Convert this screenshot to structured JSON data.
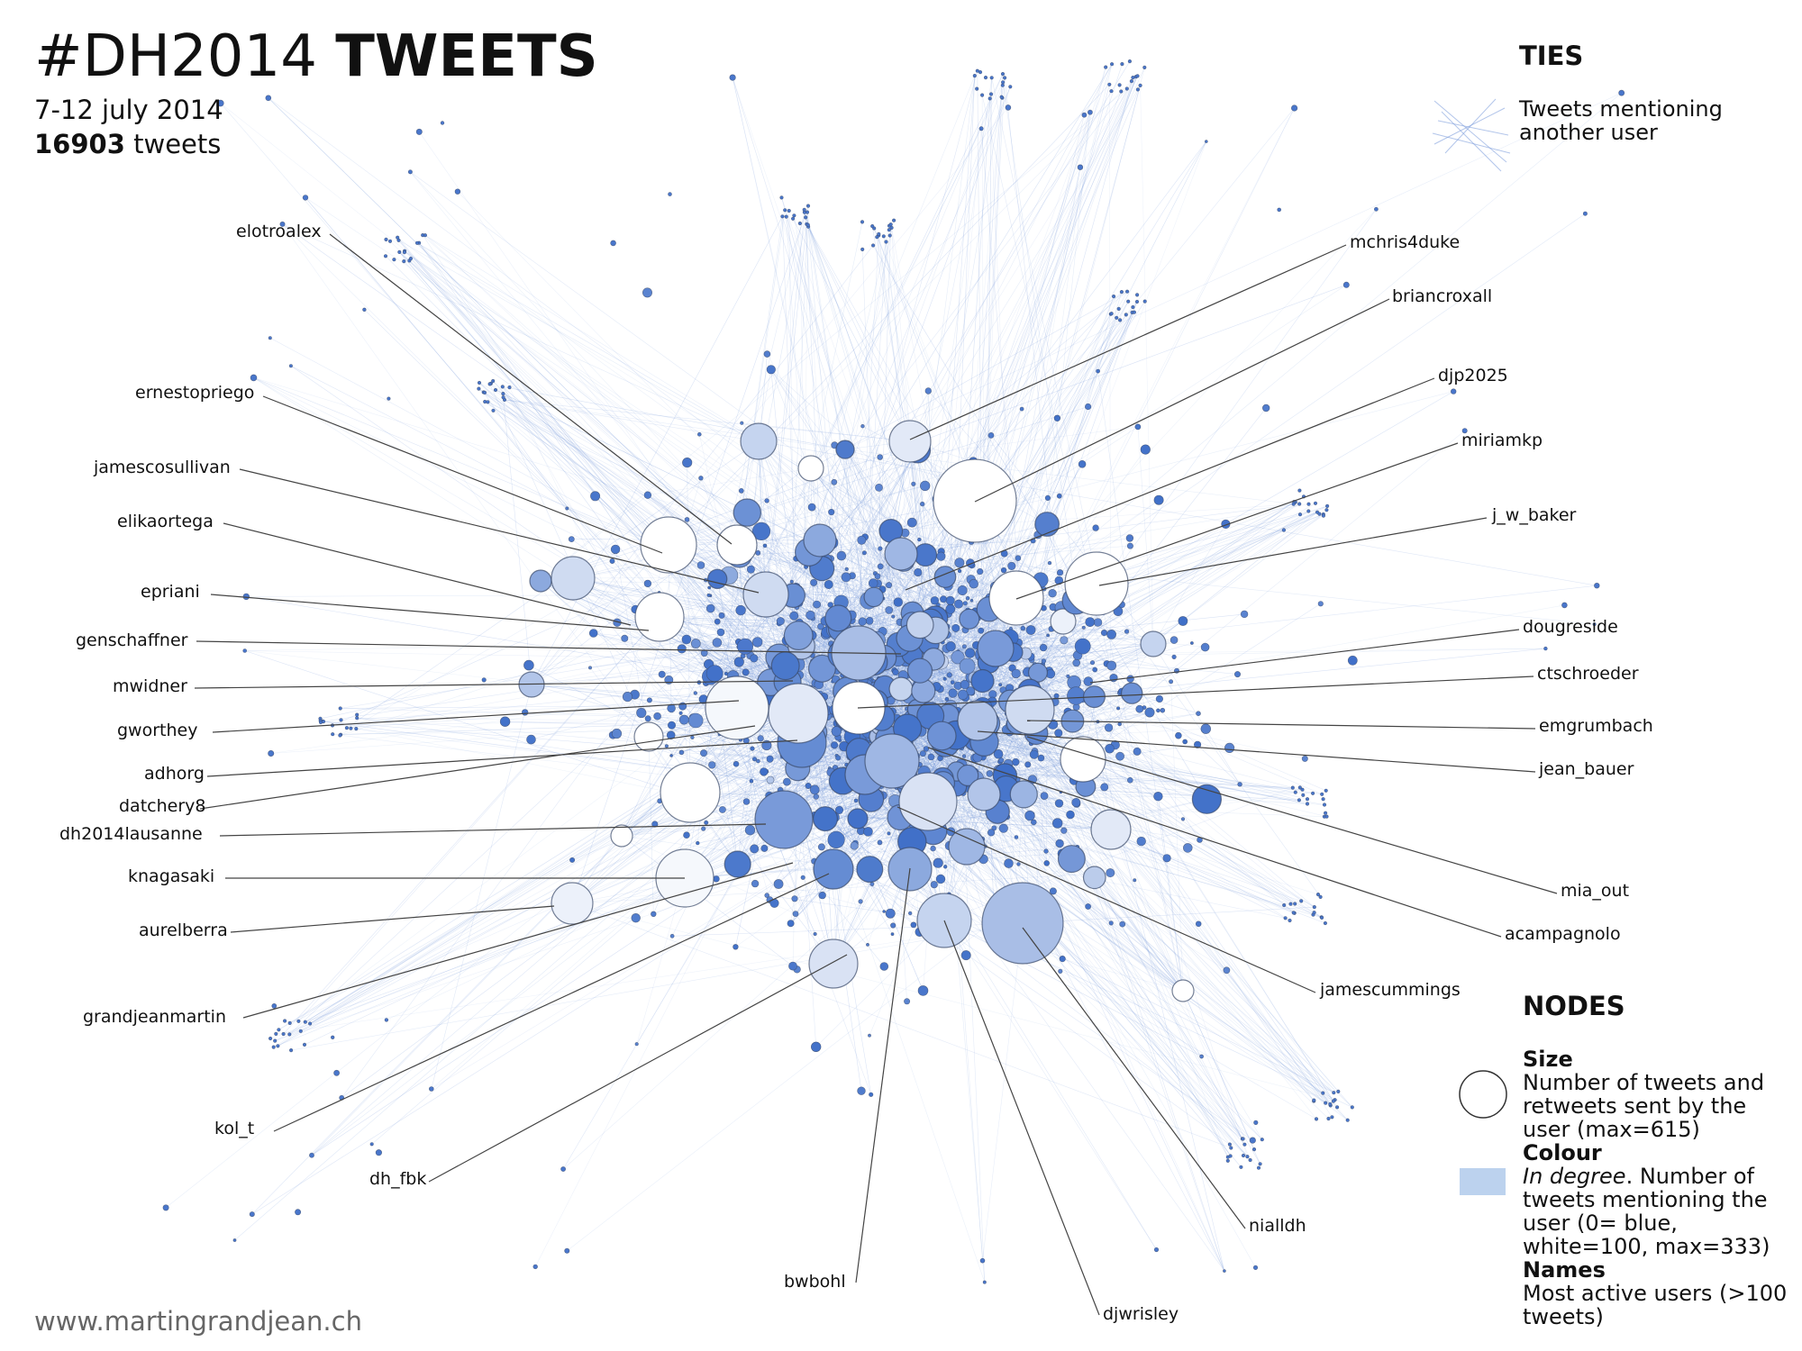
{
  "header": {
    "title_hashtag": "#DH2014",
    "title_word": "TWEETS",
    "dates": "7-12 july 2014",
    "tweet_count": "16903",
    "tweet_word": "tweets"
  },
  "footer": {
    "url": "www.martingrandjean.ch"
  },
  "legend": {
    "ties_heading": "TIES",
    "ties_text": "Tweets mentioning another user",
    "nodes_heading": "NODES",
    "size_heading": "Size",
    "size_text": "Number of tweets and retweets sent by the user (max=615)",
    "colour_heading": "Colour",
    "colour_italic": "In degree",
    "colour_text": ". Number of tweets mentioning the user (0= blue, white=100, max=333)",
    "names_heading": "Names",
    "names_text": "Most active users (>100 tweets)"
  },
  "colors": {
    "edge": "#7f9fdc",
    "node_blue": "#3f6fc8",
    "node_white": "#ffffff",
    "stroke": "#3a4a6a",
    "leader": "#444444"
  },
  "labels_left": [
    "elotroalex",
    "ernestopriego",
    "jamescosullivan",
    "elikaortega",
    "epriani",
    "genschaffner",
    "mwidner",
    "gworthey",
    "adhorg",
    "datchery8",
    "dh2014lausanne",
    "knagasaki",
    "aurelberra",
    "grandjeanmartin",
    "kol_t",
    "dh_fbk"
  ],
  "labels_right": [
    "mchris4duke",
    "briancroxall",
    "djp2025",
    "miriamkp",
    "j_w_baker",
    "dougreside",
    "ctschroeder",
    "emgrumbach",
    "jean_bauer",
    "mia_out",
    "acampagnolo",
    "jamescummings",
    "nialldh",
    "djwrisley"
  ],
  "labels_bottom": [
    "bwbohl"
  ]
}
